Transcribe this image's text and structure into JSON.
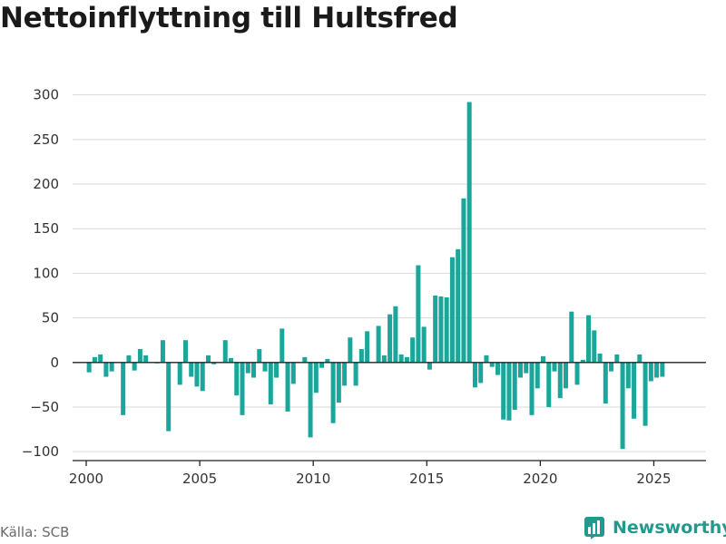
{
  "title": "Nettoinflyttning till Hultsfred",
  "source": "Källa: SCB",
  "brand": {
    "name": "Newsworthy",
    "icon": "newsworthy-logo-icon"
  },
  "colors": {
    "bar": "#1aa69a",
    "grid": "#d9d9d9",
    "axis": "#222222",
    "brand": "#1f9a8d"
  },
  "chart_data": {
    "type": "bar",
    "title": "",
    "xlabel": "",
    "ylabel": "",
    "ylim": [
      -110,
      320
    ],
    "xlim": [
      1999.4,
      2027.3
    ],
    "yticks": [
      -100,
      -50,
      0,
      50,
      100,
      150,
      200,
      250,
      300
    ],
    "ytick_labels": [
      "−100",
      "−50",
      "0",
      "50",
      "100",
      "150",
      "200",
      "250",
      "300"
    ],
    "xticks": [
      2000,
      2005,
      2010,
      2015,
      2020,
      2025
    ],
    "xtick_labels": [
      "2000",
      "2005",
      "2010",
      "2015",
      "2020",
      "2025"
    ],
    "grid": true,
    "bar_width": 0.2,
    "series": [
      {
        "x": [
          2000.125,
          2000.375,
          2000.625,
          2000.875,
          2001.125,
          2001.375,
          2001.625,
          2001.875,
          2002.125,
          2002.375,
          2002.625,
          2002.875,
          2003.125,
          2003.375,
          2003.625,
          2003.875,
          2004.125,
          2004.375,
          2004.625,
          2004.875,
          2005.125,
          2005.375,
          2005.625,
          2005.875,
          2006.125,
          2006.375,
          2006.625,
          2006.875,
          2007.125,
          2007.375,
          2007.625,
          2007.875,
          2008.125,
          2008.375,
          2008.625,
          2008.875,
          2009.125,
          2009.375,
          2009.625,
          2009.875,
          2010.125,
          2010.375,
          2010.625,
          2010.875,
          2011.125,
          2011.375,
          2011.625,
          2011.875,
          2012.125,
          2012.375,
          2012.625,
          2012.875,
          2013.125,
          2013.375,
          2013.625,
          2013.875,
          2014.125,
          2014.375,
          2014.625,
          2014.875,
          2015.125,
          2015.375,
          2015.625,
          2015.875,
          2016.125,
          2016.375,
          2016.625,
          2016.875,
          2017.125,
          2017.375,
          2017.625,
          2017.875,
          2018.125,
          2018.375,
          2018.625,
          2018.875,
          2019.125,
          2019.375,
          2019.625,
          2019.875,
          2020.125,
          2020.375,
          2020.625,
          2020.875,
          2021.125,
          2021.375,
          2021.625,
          2021.875,
          2022.125,
          2022.375,
          2022.625,
          2022.875,
          2023.125,
          2023.375,
          2023.625,
          2023.875,
          2024.125,
          2024.375,
          2024.625,
          2024.875,
          2025.125,
          2025.375
        ],
        "values": [
          -11,
          6,
          9,
          -16,
          -10,
          0,
          -59,
          8,
          -9,
          15,
          8,
          0,
          -1,
          25,
          -77,
          0,
          -25,
          25,
          -16,
          -27,
          -32,
          8,
          -2,
          0,
          25,
          5,
          -37,
          -59,
          -12,
          -17,
          15,
          -10,
          -47,
          -17,
          38,
          -55,
          -24,
          0,
          6,
          -84,
          -34,
          -6,
          4,
          -68,
          -45,
          -26,
          28,
          -26,
          15,
          35,
          0,
          41,
          8,
          54,
          63,
          9,
          6,
          28,
          109,
          40,
          -8,
          75,
          74,
          73,
          118,
          127,
          184,
          292,
          -28,
          -23,
          8,
          -5,
          -14,
          -64,
          -65,
          -53,
          -17,
          -12,
          -59,
          -29,
          7,
          -50,
          -10,
          -40,
          -29,
          57,
          -25,
          3,
          53,
          36,
          10,
          -46,
          -10,
          9,
          -97,
          -29,
          -63,
          9,
          -71,
          -21,
          -17,
          -16
        ]
      }
    ]
  }
}
